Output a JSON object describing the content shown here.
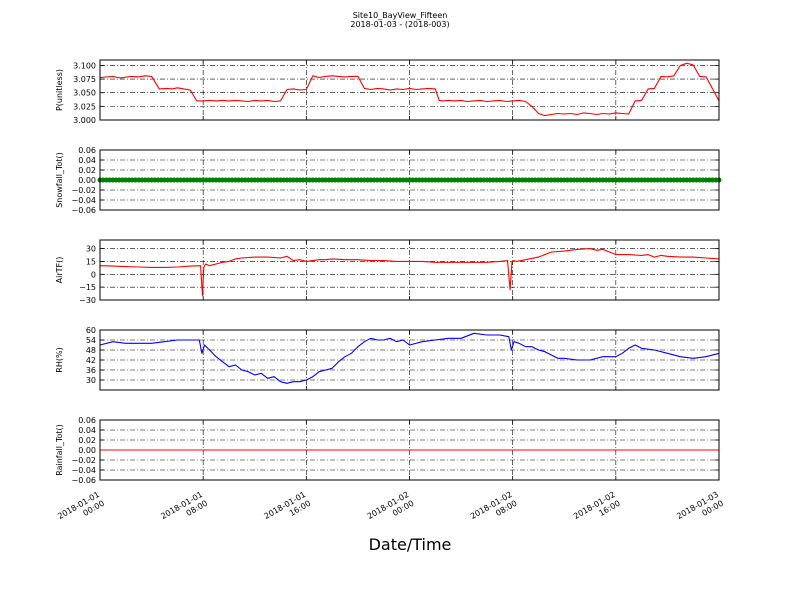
{
  "figure": {
    "title": "Site10_BayView_Fifteen",
    "subtitle": "2018-01-03 - (2018-003)",
    "xlabel": "Date/Time"
  },
  "chart_data": [
    {
      "type": "line",
      "ylabel": "P(unitless)",
      "ylim": [
        3.0,
        3.11
      ],
      "yticks": [
        "3.000",
        "3.025",
        "3.050",
        "3.075",
        "3.100"
      ],
      "ytick_values": [
        3.0,
        3.025,
        3.05,
        3.075,
        3.1
      ],
      "grid": true,
      "series": [
        {
          "color": "#ff0000",
          "x_hours": [
            0,
            1.0,
            1.6,
            2.4,
            3.0,
            3.5,
            4.0,
            4.6,
            5.2,
            5.6,
            6.0,
            6.5,
            7.0,
            7.5,
            8.0,
            8.5,
            9.0,
            9.5,
            10.0,
            10.5,
            11.0,
            11.5,
            12.0,
            12.5,
            13.0,
            13.5,
            14.0,
            14.5,
            15.0,
            15.5,
            16.0,
            16.5,
            17.0,
            17.5,
            18.0,
            18.5,
            19.0,
            19.5,
            20.0,
            20.5,
            21.0,
            21.5,
            22.0,
            22.5,
            23.0,
            23.5,
            24.0,
            24.5,
            25.0,
            25.5,
            26.0,
            26.3,
            26.6,
            27.0,
            27.5,
            28.0,
            28.5,
            29.0,
            29.5,
            30.0,
            30.5,
            31.0,
            31.5,
            32.0,
            32.5,
            33.0,
            33.5,
            34.0,
            34.5,
            35.0,
            35.5,
            36.0,
            36.5,
            37.0,
            37.5,
            38.0,
            38.5,
            39.0,
            39.5,
            40.0,
            40.5,
            41.0,
            41.5,
            42.0,
            42.5,
            43.0,
            43.5,
            44.0,
            44.5,
            45.0,
            45.5,
            46.0,
            46.5,
            47.0,
            47.5,
            48.0
          ],
          "y": [
            3.078,
            3.08,
            3.077,
            3.08,
            3.079,
            3.081,
            3.08,
            3.057,
            3.058,
            3.057,
            3.059,
            3.057,
            3.055,
            3.035,
            3.035,
            3.036,
            3.035,
            3.036,
            3.035,
            3.036,
            3.035,
            3.034,
            3.036,
            3.035,
            3.036,
            3.034,
            3.035,
            3.056,
            3.057,
            3.055,
            3.056,
            3.081,
            3.078,
            3.08,
            3.081,
            3.08,
            3.079,
            3.08,
            3.08,
            3.058,
            3.056,
            3.058,
            3.057,
            3.055,
            3.057,
            3.056,
            3.058,
            3.056,
            3.057,
            3.058,
            3.057,
            3.036,
            3.035,
            3.036,
            3.035,
            3.036,
            3.034,
            3.035,
            3.036,
            3.034,
            3.035,
            3.036,
            3.034,
            3.035,
            3.036,
            3.034,
            3.025,
            3.012,
            3.008,
            3.01,
            3.012,
            3.011,
            3.012,
            3.01,
            3.013,
            3.012,
            3.01,
            3.012,
            3.011,
            3.013,
            3.012,
            3.011,
            3.035,
            3.036,
            3.057,
            3.058,
            3.08,
            3.079,
            3.081,
            3.1,
            3.104,
            3.101,
            3.08,
            3.079,
            3.057,
            3.035
          ]
        }
      ]
    },
    {
      "type": "scatter",
      "ylabel": "Snowfall_Tot()",
      "ylim": [
        -0.06,
        0.06
      ],
      "yticks": [
        "−0.06",
        "−0.04",
        "−0.02",
        "0.00",
        "0.02",
        "0.04",
        "0.06"
      ],
      "ytick_values": [
        -0.06,
        -0.04,
        -0.02,
        0,
        0.02,
        0.04,
        0.06
      ],
      "grid": true,
      "series": [
        {
          "color": "#008000",
          "y_constant": 0.0,
          "x_range_hours": [
            0,
            48
          ],
          "interval_minutes": 15
        }
      ]
    },
    {
      "type": "line",
      "ylabel": "AirTF()",
      "ylim": [
        -30,
        40
      ],
      "yticks": [
        "−30",
        "−15",
        "0",
        "15",
        "30"
      ],
      "ytick_values": [
        -30,
        -15,
        0,
        15,
        30
      ],
      "grid": true,
      "series": [
        {
          "color": "#ff0000",
          "x_hours": [
            0,
            1,
            2,
            3,
            4,
            5,
            6,
            7,
            7.8,
            7.95,
            8.05,
            8.2,
            8.5,
            9,
            9.5,
            10,
            10.5,
            11,
            12,
            13,
            14,
            14.5,
            15,
            15.5,
            16,
            16.5,
            17,
            17.5,
            18,
            19,
            20,
            21,
            22,
            23,
            24,
            25,
            26,
            27,
            28,
            29,
            30,
            31,
            31.6,
            31.8,
            31.95,
            32.1,
            32.3,
            33,
            34,
            35,
            36,
            37,
            38,
            38.5,
            39,
            39.5,
            40,
            41,
            42,
            42.5,
            43,
            43.5,
            44,
            45,
            46,
            47,
            48
          ],
          "y": [
            10,
            9.5,
            9,
            8.5,
            8,
            8,
            8.5,
            9.5,
            10,
            -25,
            8,
            12,
            10,
            12,
            14,
            15,
            18,
            19,
            20,
            20,
            19,
            21,
            16,
            17,
            15,
            16,
            17,
            17,
            18,
            17,
            17,
            16,
            16,
            15,
            15,
            15,
            14,
            14,
            14,
            14,
            14,
            15,
            16,
            -18,
            14,
            16,
            15,
            17,
            20,
            26,
            27,
            29,
            30,
            28,
            29,
            26,
            23,
            23,
            22,
            23,
            20,
            22,
            21,
            20,
            20,
            19,
            18
          ]
        }
      ]
    },
    {
      "type": "line",
      "ylabel": "RH(%)",
      "ylim": [
        24,
        60
      ],
      "yticks": [
        "30",
        "36",
        "42",
        "48",
        "54",
        "60"
      ],
      "ytick_values": [
        30,
        36,
        42,
        48,
        54,
        60
      ],
      "grid": true,
      "series": [
        {
          "color": "#0000ff",
          "x_hours": [
            0,
            1,
            2,
            3,
            4,
            5,
            6,
            7,
            7.7,
            7.9,
            8.1,
            8.5,
            9,
            9.5,
            10,
            10.5,
            11,
            11.5,
            12,
            12.5,
            13,
            13.5,
            14,
            14.5,
            15,
            15.5,
            16,
            16.5,
            17,
            17.5,
            18,
            18.5,
            19,
            19.5,
            20,
            20.5,
            21,
            21.5,
            22,
            22.5,
            23,
            23.5,
            24,
            25,
            26,
            27,
            28,
            29,
            30,
            31,
            31.7,
            31.9,
            32.1,
            32.5,
            33,
            33.5,
            34,
            34.5,
            35,
            35.5,
            36,
            37,
            38,
            39,
            40,
            40.5,
            41,
            41.5,
            42,
            43,
            44,
            45,
            46,
            47,
            48
          ],
          "y": [
            51,
            53,
            52,
            52,
            52,
            53,
            54,
            54,
            54,
            46,
            51,
            48,
            44,
            41,
            38,
            39,
            36,
            35,
            33,
            34,
            31,
            32,
            29,
            28,
            29,
            29,
            30,
            32,
            35,
            36,
            37,
            41,
            44,
            46,
            50,
            53,
            55,
            54,
            54,
            55,
            53,
            54,
            51,
            53,
            54,
            55,
            55,
            58,
            57,
            57,
            56,
            48,
            53,
            52,
            50,
            50,
            48,
            47,
            45,
            43,
            43,
            42,
            42,
            44,
            44,
            46,
            49,
            51,
            49,
            48,
            46,
            44,
            43,
            44,
            46
          ]
        }
      ]
    },
    {
      "type": "line",
      "ylabel": "Rainfall_Tot()",
      "ylim": [
        -0.06,
        0.06
      ],
      "yticks": [
        "−0.06",
        "−0.04",
        "−0.02",
        "0.00",
        "0.02",
        "0.04",
        "0.06"
      ],
      "ytick_values": [
        -0.06,
        -0.04,
        -0.02,
        0,
        0.02,
        0.04,
        0.06
      ],
      "grid": true,
      "series": [
        {
          "color": "#ff0000",
          "x_hours": [
            0,
            48
          ],
          "y": [
            0,
            0
          ]
        }
      ]
    }
  ],
  "x_axis": {
    "range_hours": [
      0,
      48
    ],
    "ticks_hours": [
      0,
      8,
      16,
      24,
      32,
      40,
      48
    ],
    "tick_labels": [
      [
        "2018-01-01",
        "00:00"
      ],
      [
        "2018-01-01",
        "08:00"
      ],
      [
        "2018-01-01",
        "16:00"
      ],
      [
        "2018-01-02",
        "00:00"
      ],
      [
        "2018-01-02",
        "08:00"
      ],
      [
        "2018-01-02",
        "16:00"
      ],
      [
        "2018-01-03",
        "00:00"
      ]
    ]
  }
}
